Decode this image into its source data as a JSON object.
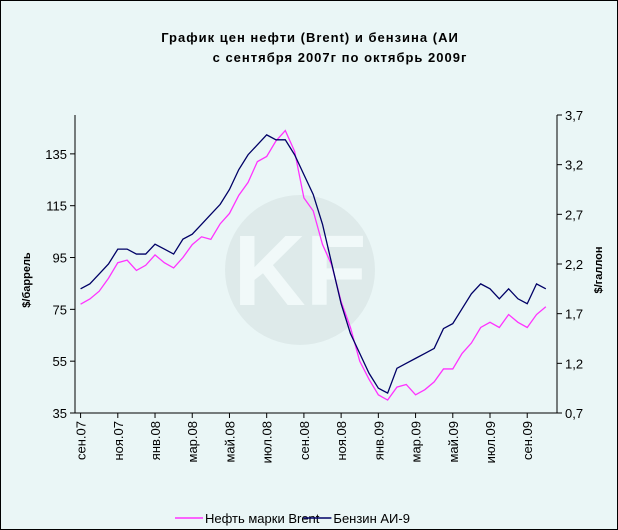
{
  "chart_data": {
    "type": "line",
    "title": "График цен нефти (Brent) и бензина (АИ",
    "subtitle": "с сентября 2007г по октябрь 2009г",
    "ylabel": "$/баррель",
    "y2label": "$/галлон",
    "x": [
      0,
      0.5,
      1,
      1.5,
      2,
      2.5,
      3,
      3.5,
      4,
      4.5,
      5,
      5.5,
      6,
      6.5,
      7,
      7.5,
      8,
      8.5,
      9,
      9.5,
      10,
      10.5,
      11,
      11.5,
      12,
      12.5,
      13,
      13.5,
      14,
      14.5,
      15,
      15.5,
      16,
      16.5,
      17,
      17.5,
      18,
      18.5,
      19,
      19.5,
      20,
      20.5,
      21,
      21.5,
      22,
      22.5,
      23,
      23.5,
      24,
      24.5,
      25
    ],
    "xlim": [
      -0.3,
      25.6
    ],
    "xticks": [
      {
        "value": 0,
        "label": "сен.07"
      },
      {
        "value": 2,
        "label": "ноя.07"
      },
      {
        "value": 4,
        "label": "янв.08"
      },
      {
        "value": 6,
        "label": "мар.08"
      },
      {
        "value": 8,
        "label": "май.08"
      },
      {
        "value": 10,
        "label": "июл.08"
      },
      {
        "value": 12,
        "label": "сен.08"
      },
      {
        "value": 14,
        "label": "ноя.08"
      },
      {
        "value": 16,
        "label": "янв.09"
      },
      {
        "value": 18,
        "label": "мар.09"
      },
      {
        "value": 20,
        "label": "май.09"
      },
      {
        "value": 22,
        "label": "июл.09"
      },
      {
        "value": 24,
        "label": "сен.09"
      }
    ],
    "ylim": [
      35,
      150
    ],
    "yticks": [
      35,
      55,
      75,
      95,
      115,
      135
    ],
    "y2lim": [
      0.7,
      3.7
    ],
    "y2ticks": [
      {
        "value": 0.7,
        "label": "0,7"
      },
      {
        "value": 1.2,
        "label": "1,2"
      },
      {
        "value": 1.7,
        "label": "1,7"
      },
      {
        "value": 2.2,
        "label": "2,2"
      },
      {
        "value": 2.7,
        "label": "2,7"
      },
      {
        "value": 3.2,
        "label": "3,2"
      },
      {
        "value": 3.7,
        "label": "3,7"
      }
    ],
    "series": [
      {
        "name": "Нефть марки Brent",
        "color": "#ff33ff",
        "values": [
          77,
          79,
          82,
          87,
          93,
          94,
          90,
          92,
          96,
          93,
          91,
          95,
          100,
          103,
          102,
          108,
          112,
          119,
          124,
          132,
          134,
          140,
          144,
          136,
          118,
          113,
          100,
          92,
          78,
          68,
          55,
          48,
          42,
          40,
          45,
          46,
          42,
          44,
          47,
          52,
          52,
          58,
          62,
          68,
          70,
          68,
          73,
          70,
          68,
          73,
          76
        ]
      },
      {
        "name": "Бензин АИ-9",
        "color": "#000066",
        "axis": "y2",
        "values": [
          1.95,
          2.0,
          2.1,
          2.2,
          2.35,
          2.35,
          2.3,
          2.3,
          2.4,
          2.35,
          2.3,
          2.45,
          2.5,
          2.6,
          2.7,
          2.8,
          2.95,
          3.15,
          3.3,
          3.4,
          3.5,
          3.45,
          3.45,
          3.3,
          3.1,
          2.9,
          2.6,
          2.2,
          1.8,
          1.5,
          1.3,
          1.1,
          0.95,
          0.9,
          1.15,
          1.2,
          1.25,
          1.3,
          1.35,
          1.55,
          1.6,
          1.75,
          1.9,
          2.0,
          1.95,
          1.85,
          1.95,
          1.85,
          1.8,
          2.0,
          1.95
        ]
      }
    ]
  }
}
